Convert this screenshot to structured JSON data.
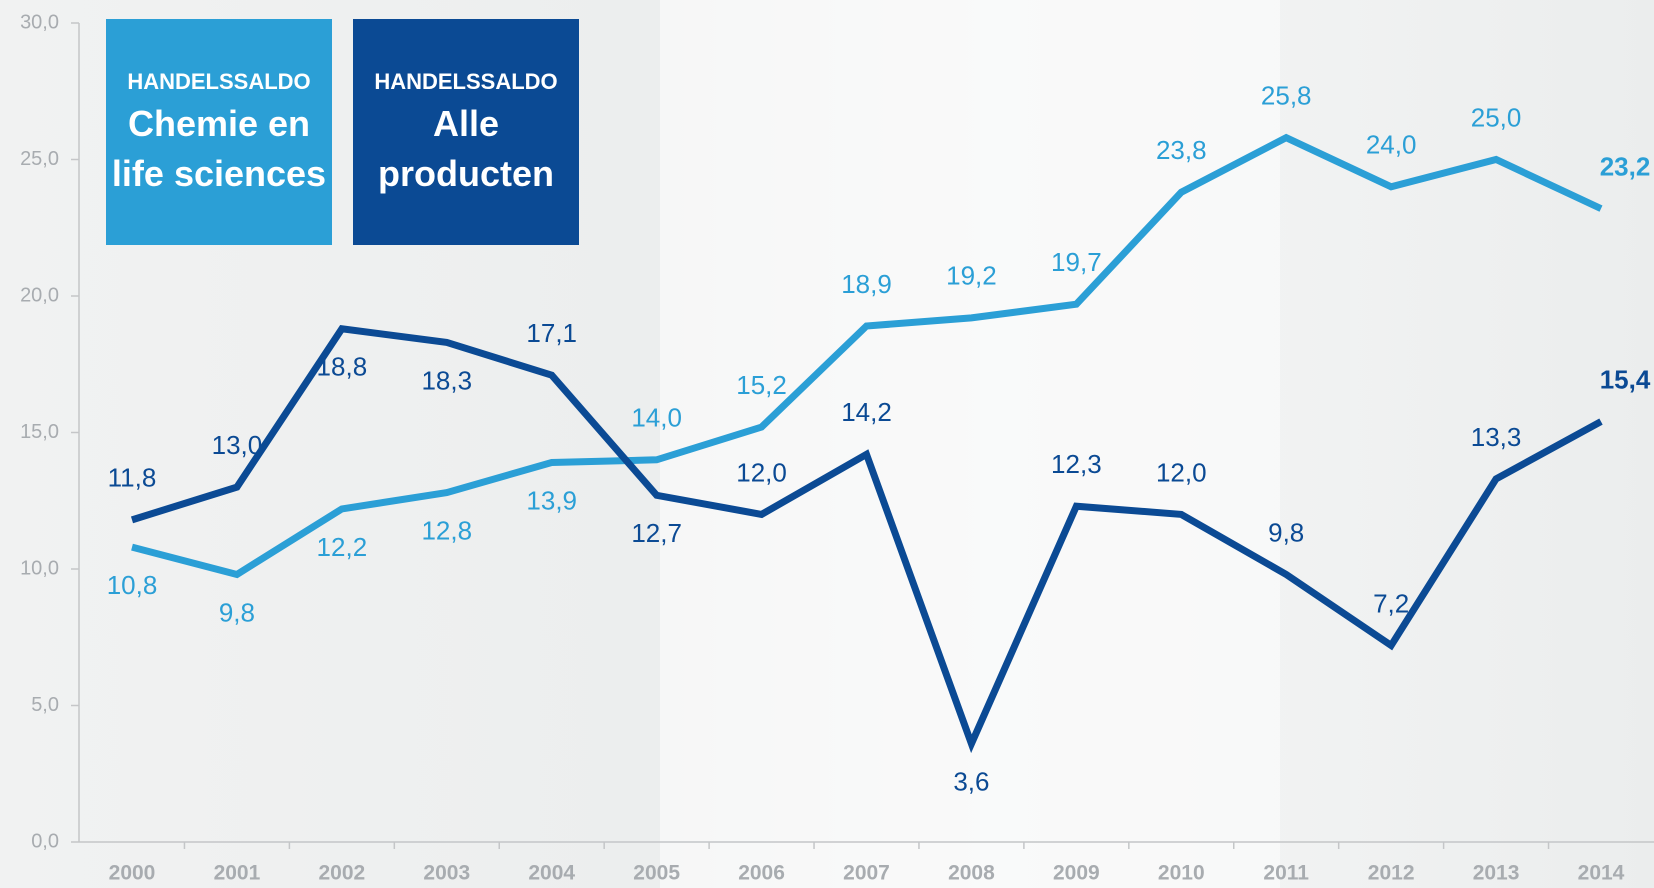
{
  "chart_data": {
    "type": "line",
    "categories": [
      "2000",
      "2001",
      "2002",
      "2003",
      "2004",
      "2005",
      "2006",
      "2007",
      "2008",
      "2009",
      "2010",
      "2011",
      "2012",
      "2013",
      "2014"
    ],
    "series": [
      {
        "name": "Chemie en life sciences",
        "legend_heading": "HANDELSSALDO",
        "color": "#2b9fd6",
        "values": [
          10.8,
          9.8,
          12.2,
          12.8,
          13.9,
          14.0,
          15.2,
          18.9,
          19.2,
          19.7,
          23.8,
          25.8,
          24.0,
          25.0,
          23.2
        ],
        "value_labels": [
          "10,8",
          "9,8",
          "12,2",
          "12,8",
          "13,9",
          "14,0",
          "15,2",
          "18,9",
          "19,2",
          "19,7",
          "23,8",
          "25,8",
          "24,0",
          "25,0",
          "23,2"
        ]
      },
      {
        "name": "Alle producten",
        "legend_heading": "HANDELSSALDO",
        "color": "#0b4a94",
        "values": [
          11.8,
          13.0,
          18.8,
          18.3,
          17.1,
          12.7,
          12.0,
          14.2,
          3.6,
          12.3,
          12.0,
          9.8,
          7.2,
          13.3,
          15.4
        ],
        "value_labels": [
          "11,8",
          "13,0",
          "18,8",
          "18,3",
          "17,1",
          "12,7",
          "12,0",
          "14,2",
          "3,6",
          "12,3",
          "12,0",
          "9,8",
          "7,2",
          "13,3",
          "15,4"
        ]
      }
    ],
    "ylim": [
      0,
      30
    ],
    "yticks": [
      {
        "value": 0,
        "label": "0,0"
      },
      {
        "value": 5,
        "label": "5,0"
      },
      {
        "value": 10,
        "label": "10,0"
      },
      {
        "value": 15,
        "label": "15,0"
      },
      {
        "value": 20,
        "label": "20,0"
      },
      {
        "value": 25,
        "label": "25,0"
      },
      {
        "value": 30,
        "label": "30,0"
      }
    ]
  }
}
